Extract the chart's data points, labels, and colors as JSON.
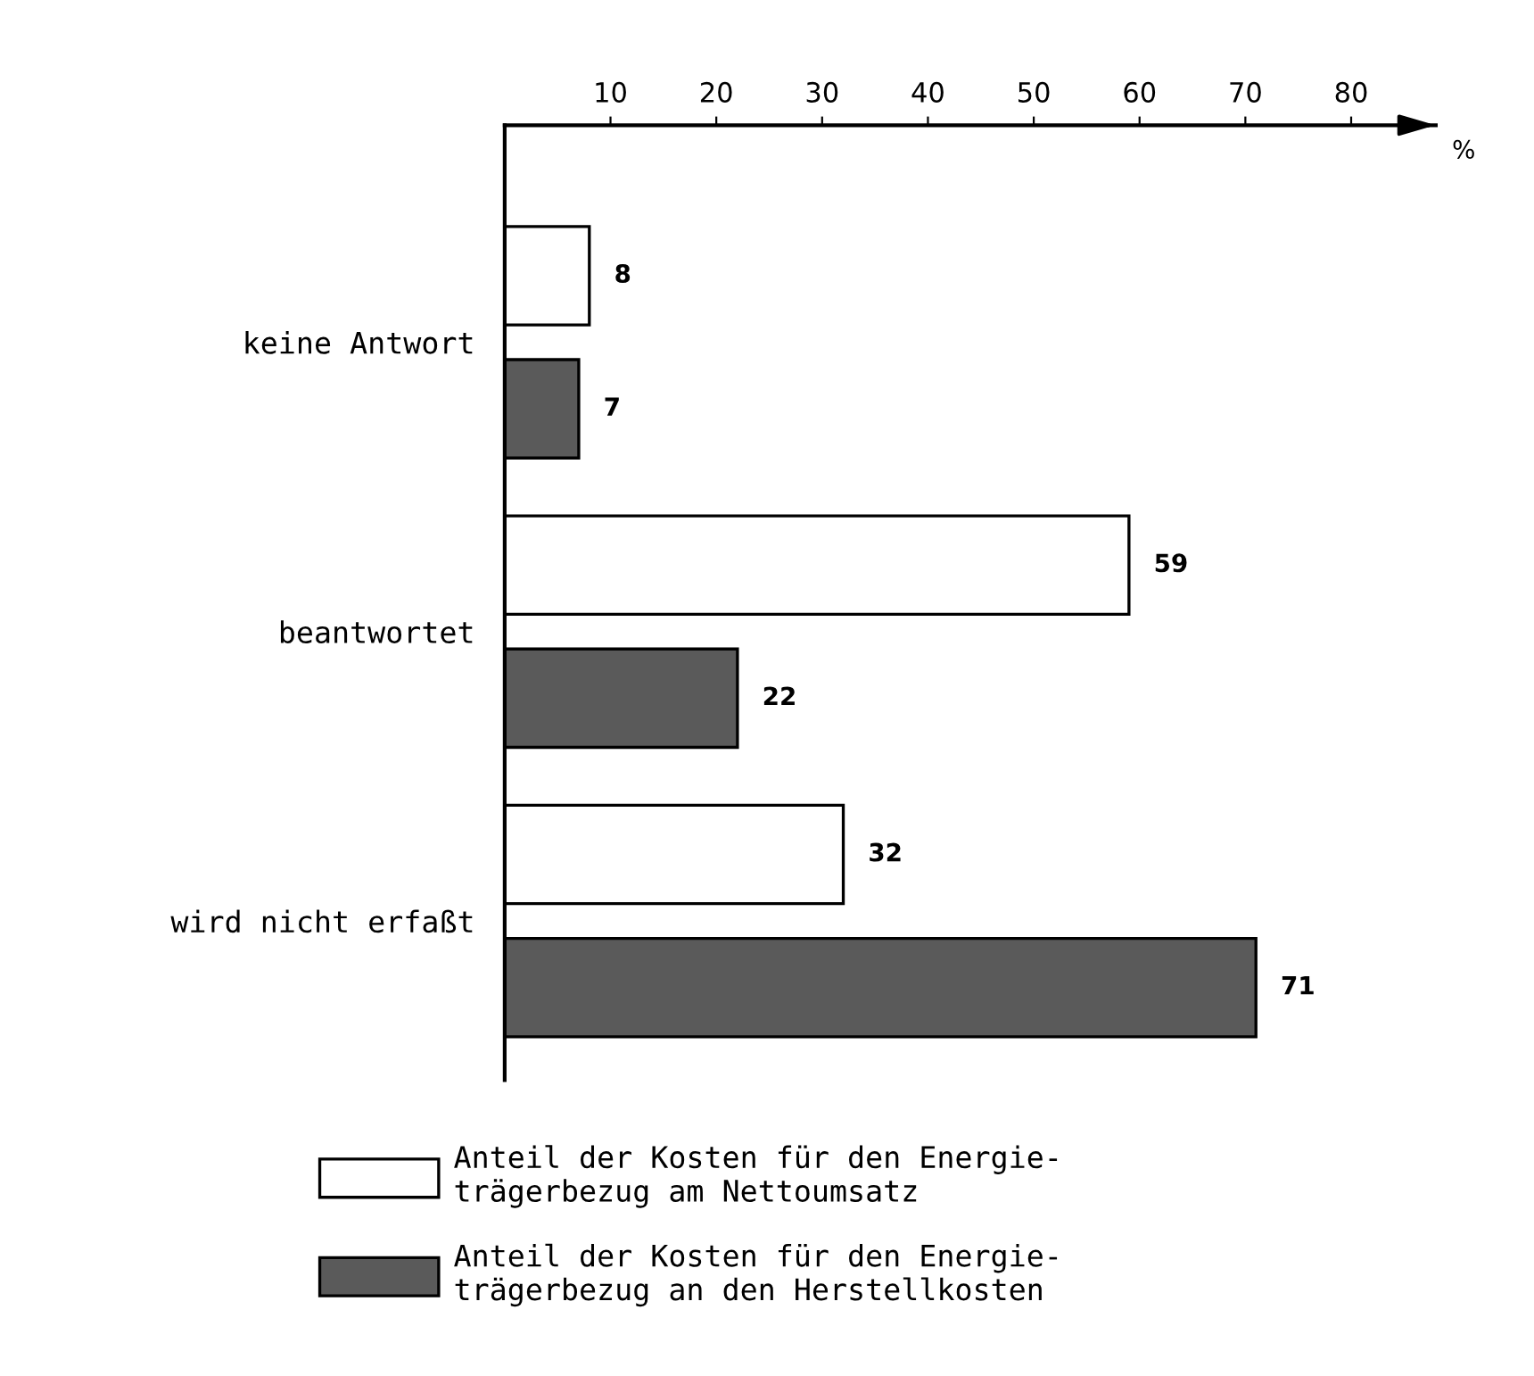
{
  "chart_data": {
    "type": "bar",
    "orientation": "horizontal",
    "categories": [
      "keine Antwort",
      "beantwortet",
      "wird nicht erfaßt"
    ],
    "series": [
      {
        "name": "Anteil der Kosten für den Energie-\nträgerbezug am Nettoumsatz",
        "color": "#ffffff",
        "values": [
          8,
          59,
          32
        ]
      },
      {
        "name": "Anteil der Kosten für den Energie-\nträgerbezug an den Herstellkosten",
        "color": "#5a5a5a",
        "values": [
          7,
          22,
          71
        ]
      }
    ],
    "xlabel": "%",
    "xlim": [
      0,
      88
    ],
    "xticks": [
      10,
      20,
      30,
      40,
      50,
      60,
      70,
      80
    ],
    "data_labels": true,
    "grid": false,
    "legend": "bottom"
  }
}
